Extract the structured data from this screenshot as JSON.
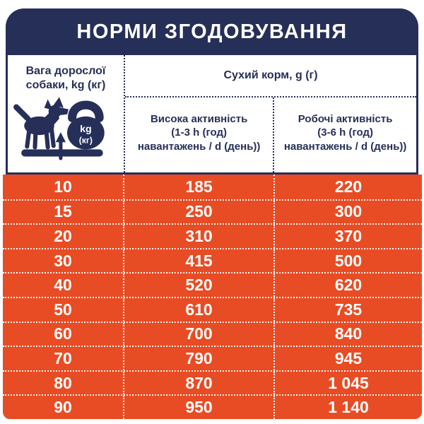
{
  "colors": {
    "navy": "#262f58",
    "orange": "#e84c24",
    "text_on_dark": "#ffffff"
  },
  "title": "НОРМИ ЗГОДОВУВАННЯ",
  "header": {
    "weight": {
      "line1": "Вага дорослої",
      "line2": "собаки, kg (кг)"
    },
    "dry_food_label": "Сухий корм, g (г)",
    "high_activity": {
      "line1": "Висока активність",
      "line2": "(1-3 h (год)",
      "line3": "навантажень / d (день))"
    },
    "work_activity": {
      "line1": "Робочі активність",
      "line2": "(3-6 h (год)",
      "line3": "навантажень / d (день))"
    },
    "kettlebell": {
      "line1": "kg",
      "line2": "(кг)"
    }
  },
  "chart_data": {
    "type": "table",
    "title": "НОРМИ ЗГОДОВУВАННЯ",
    "columns": [
      "Вага дорослої собаки, kg (кг)",
      "Висока активність (1-3 h (год) навантажень / d (день))",
      "Робочі активність (3-6 h (год) навантажень / d (день))"
    ],
    "rows": [
      [
        "10",
        "185",
        "220"
      ],
      [
        "15",
        "250",
        "300"
      ],
      [
        "20",
        "310",
        "370"
      ],
      [
        "30",
        "415",
        "500"
      ],
      [
        "40",
        "520",
        "620"
      ],
      [
        "50",
        "610",
        "735"
      ],
      [
        "60",
        "700",
        "840"
      ],
      [
        "70",
        "790",
        "945"
      ],
      [
        "80",
        "870",
        "1 045"
      ],
      [
        "90",
        "950",
        "1 140"
      ]
    ]
  }
}
